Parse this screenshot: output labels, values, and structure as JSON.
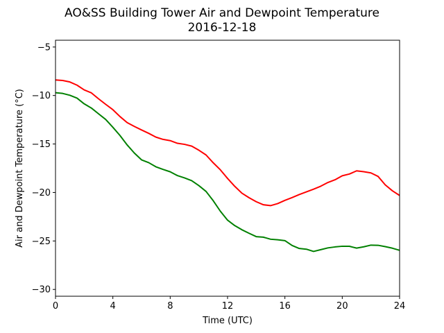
{
  "chart_data": {
    "type": "line",
    "title": "AO&SS Building Tower Air and Dewpoint Temperature",
    "subtitle": "2016-12-18",
    "xlabel": "Time (UTC)",
    "ylabel": "Air and Dewpoint Temperature (°C)",
    "xlim": [
      0,
      24
    ],
    "ylim": [
      -30.7,
      -4.3
    ],
    "xticks": [
      0,
      4,
      8,
      12,
      16,
      20,
      24
    ],
    "xtick_labels": [
      "0",
      "4",
      "8",
      "12",
      "16",
      "20",
      "24"
    ],
    "yticks": [
      -30,
      -25,
      -20,
      -15,
      -10,
      -5
    ],
    "ytick_labels": [
      "−30",
      "−25",
      "−20",
      "−15",
      "−10",
      "−5"
    ],
    "grid": false,
    "series": [
      {
        "color": "#ff0000",
        "x": [
          0,
          0.5,
          1,
          1.5,
          2,
          2.5,
          3,
          3.5,
          4,
          4.5,
          5,
          5.5,
          6,
          6.5,
          7,
          7.5,
          8,
          8.5,
          9,
          9.5,
          10,
          10.5,
          11,
          11.5,
          12,
          12.5,
          13,
          13.5,
          14,
          14.5,
          15,
          15.5,
          16,
          16.5,
          17,
          17.5,
          18,
          18.5,
          19,
          19.5,
          20,
          20.5,
          21,
          21.5,
          22,
          22.5,
          23,
          23.5,
          24
        ],
        "y": [
          -8.4,
          -8.4,
          -8.6,
          -8.9,
          -9.4,
          -9.7,
          -10.3,
          -10.9,
          -11.5,
          -12.2,
          -12.8,
          -13.2,
          -13.6,
          -13.9,
          -14.3,
          -14.5,
          -14.6,
          -14.9,
          -15.0,
          -15.2,
          -15.6,
          -16.1,
          -16.9,
          -17.7,
          -18.6,
          -19.4,
          -20.1,
          -20.6,
          -21.0,
          -21.3,
          -21.3,
          -21.1,
          -20.8,
          -20.5,
          -20.2,
          -19.9,
          -19.6,
          -19.3,
          -19.0,
          -18.7,
          -18.3,
          -18.1,
          -17.8,
          -17.9,
          -18.0,
          -18.3,
          -19.2,
          -19.8,
          -20.3
        ]
      },
      {
        "color": "#008000",
        "x": [
          0,
          0.5,
          1,
          1.5,
          2,
          2.5,
          3,
          3.5,
          4,
          4.5,
          5,
          5.5,
          6,
          6.5,
          7,
          7.5,
          8,
          8.5,
          9,
          9.5,
          10,
          10.5,
          11,
          11.5,
          12,
          12.5,
          13,
          13.5,
          14,
          14.5,
          15,
          15.5,
          16,
          16.5,
          17,
          17.5,
          18,
          18.5,
          19,
          19.5,
          20,
          20.5,
          21,
          21.5,
          22,
          22.5,
          23,
          23.5,
          24
        ],
        "y": [
          -9.7,
          -9.8,
          -10.0,
          -10.3,
          -10.9,
          -11.3,
          -11.9,
          -12.5,
          -13.3,
          -14.1,
          -15.1,
          -15.9,
          -16.6,
          -16.9,
          -17.3,
          -17.6,
          -17.9,
          -18.3,
          -18.5,
          -18.8,
          -19.3,
          -19.9,
          -20.9,
          -21.9,
          -22.8,
          -23.4,
          -23.8,
          -24.2,
          -24.5,
          -24.6,
          -24.8,
          -24.9,
          -25.0,
          -25.5,
          -25.8,
          -25.9,
          -26.1,
          -25.9,
          -25.7,
          -25.6,
          -25.5,
          -25.5,
          -25.7,
          -25.6,
          -25.4,
          -25.4,
          -25.6,
          -25.8,
          -26.0
        ]
      }
    ]
  }
}
